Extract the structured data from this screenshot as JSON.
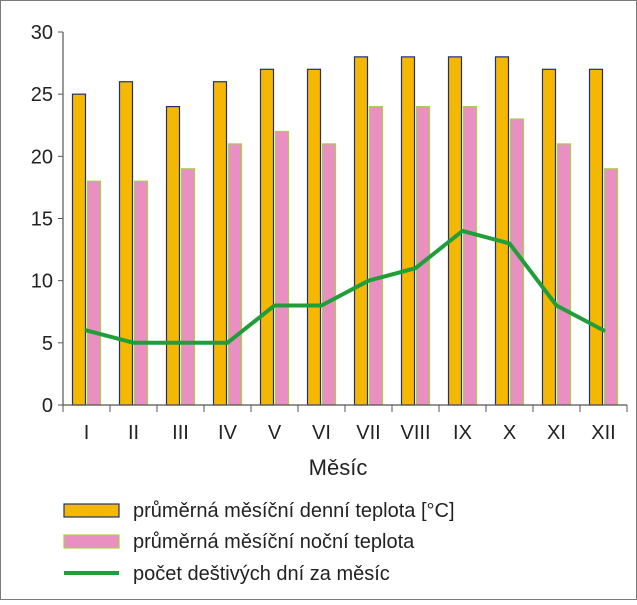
{
  "chart_data": {
    "type": "bar",
    "categories": [
      "I",
      "II",
      "III",
      "IV",
      "V",
      "VI",
      "VII",
      "VIII",
      "IX",
      "X",
      "XI",
      "XII"
    ],
    "series": [
      {
        "name": "průměrná měsíční denní teplota [°C]",
        "kind": "bar",
        "color": "#f5b800",
        "border": "#1f2f7a",
        "values": [
          25,
          26,
          24,
          26,
          27,
          27,
          28,
          28,
          28,
          28,
          27,
          27
        ]
      },
      {
        "name": "průměrná měsíční noční teplota",
        "kind": "bar",
        "color": "#e98fc1",
        "border": "#a6cf4a",
        "values": [
          18,
          18,
          19,
          21,
          22,
          21,
          24,
          24,
          24,
          23,
          21,
          19
        ]
      },
      {
        "name": "počet deštivých dní za měsíc",
        "kind": "line",
        "color": "#1f9e3a",
        "values": [
          6,
          5,
          5,
          5,
          8,
          8,
          10,
          11,
          14,
          13,
          8,
          6
        ]
      }
    ],
    "xlabel": "Měsíc",
    "ylabel": "",
    "ylim": [
      0,
      30
    ],
    "yticks": [
      "0",
      "5",
      "10",
      "15",
      "20",
      "25",
      "30"
    ],
    "grid": false,
    "legend_position": "bottom"
  }
}
